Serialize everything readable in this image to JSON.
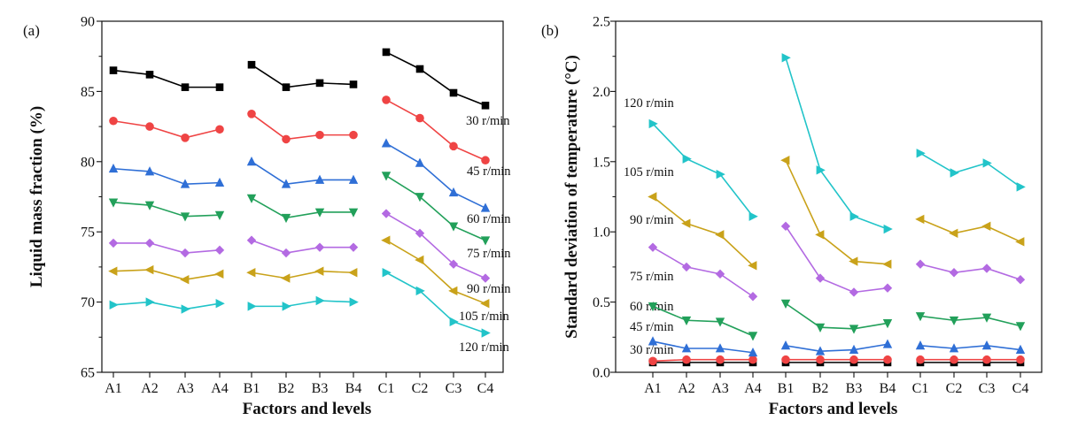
{
  "chart_data": [
    {
      "type": "line",
      "panel": "(a)",
      "xlabel": "Factors and levels",
      "ylabel": "Liquid mass fraction (%)",
      "ylim": [
        65,
        90
      ],
      "yticks": [
        "65",
        "70",
        "75",
        "80",
        "85",
        "90"
      ],
      "groups": [
        [
          "A1",
          "A2",
          "A3",
          "A4"
        ],
        [
          "B1",
          "B2",
          "B3",
          "B4"
        ],
        [
          "C1",
          "C2",
          "C3",
          "C4"
        ]
      ],
      "series": [
        {
          "name": "30 r/min",
          "label": "30 r/min",
          "color": "#000000",
          "marker": "square",
          "values": [
            [
              86.5,
              86.2,
              85.3,
              85.3
            ],
            [
              86.9,
              85.3,
              85.6,
              85.5
            ],
            [
              87.8,
              86.6,
              84.9,
              84.0
            ]
          ]
        },
        {
          "name": "45 r/min",
          "label": "45 r/min",
          "color": "#ef4444",
          "marker": "circle",
          "values": [
            [
              82.9,
              82.5,
              81.7,
              82.3
            ],
            [
              83.4,
              81.6,
              81.9,
              81.9
            ],
            [
              84.4,
              83.1,
              81.1,
              80.1
            ]
          ]
        },
        {
          "name": "60 r/min",
          "label": "60 r/min",
          "color": "#2f6fd6",
          "marker": "triangle-up",
          "values": [
            [
              79.5,
              79.3,
              78.4,
              78.5
            ],
            [
              80.0,
              78.4,
              78.7,
              78.7
            ],
            [
              81.3,
              79.9,
              77.8,
              76.7
            ]
          ]
        },
        {
          "name": "75 r/min",
          "label": "75 r/min",
          "color": "#22a05a",
          "marker": "triangle-down",
          "values": [
            [
              77.1,
              76.9,
              76.1,
              76.2
            ],
            [
              77.4,
              76.0,
              76.4,
              76.4
            ],
            [
              79.0,
              77.5,
              75.4,
              74.4
            ]
          ]
        },
        {
          "name": "90 r/min",
          "label": "90 r/min",
          "color": "#b36ae2",
          "marker": "diamond",
          "values": [
            [
              74.2,
              74.2,
              73.5,
              73.7
            ],
            [
              74.4,
              73.5,
              73.9,
              73.9
            ],
            [
              76.3,
              74.9,
              72.7,
              71.7
            ]
          ]
        },
        {
          "name": "105 r/min",
          "label": "105 r/min",
          "color": "#c9a21a",
          "marker": "triangle-left",
          "values": [
            [
              72.2,
              72.3,
              71.6,
              72.0
            ],
            [
              72.1,
              71.7,
              72.2,
              72.1
            ],
            [
              74.4,
              73.0,
              70.8,
              69.9
            ]
          ]
        },
        {
          "name": "120 r/min",
          "label": "120 r/min",
          "color": "#22c4c9",
          "marker": "triangle-right",
          "values": [
            [
              69.8,
              70.0,
              69.5,
              69.9
            ],
            [
              69.7,
              69.7,
              70.1,
              70.0
            ],
            [
              72.1,
              70.8,
              68.6,
              67.8
            ]
          ]
        }
      ]
    },
    {
      "type": "line",
      "panel": "(b)",
      "xlabel": "Factors and levels",
      "ylabel": "Standard deviation of temperature (°C)",
      "ylim": [
        0,
        2.5
      ],
      "yticks": [
        "0.0",
        "0.5",
        "1.0",
        "1.5",
        "2.0",
        "2.5"
      ],
      "groups": [
        [
          "A1",
          "A2",
          "A3",
          "A4"
        ],
        [
          "B1",
          "B2",
          "B3",
          "B4"
        ],
        [
          "C1",
          "C2",
          "C3",
          "C4"
        ]
      ],
      "series": [
        {
          "name": "30 r/min",
          "label": "30 r/min",
          "color": "#000000",
          "marker": "square",
          "values": [
            [
              0.07,
              0.07,
              0.07,
              0.07
            ],
            [
              0.07,
              0.07,
              0.07,
              0.07
            ],
            [
              0.07,
              0.07,
              0.07,
              0.07
            ]
          ]
        },
        {
          "name": "45 r/min",
          "label": "45 r/min",
          "color": "#ef4444",
          "marker": "circle",
          "values": [
            [
              0.08,
              0.09,
              0.09,
              0.09
            ],
            [
              0.09,
              0.09,
              0.09,
              0.09
            ],
            [
              0.09,
              0.09,
              0.09,
              0.09
            ]
          ]
        },
        {
          "name": "60 r/min",
          "label": "60 r/min",
          "color": "#2f6fd6",
          "marker": "triangle-up",
          "values": [
            [
              0.22,
              0.17,
              0.17,
              0.14
            ],
            [
              0.19,
              0.15,
              0.16,
              0.2
            ],
            [
              0.19,
              0.17,
              0.19,
              0.16
            ]
          ]
        },
        {
          "name": "75 r/min",
          "label": "75 r/min",
          "color": "#22a05a",
          "marker": "triangle-down",
          "values": [
            [
              0.47,
              0.37,
              0.36,
              0.26
            ],
            [
              0.49,
              0.32,
              0.31,
              0.35
            ],
            [
              0.4,
              0.37,
              0.39,
              0.33
            ]
          ]
        },
        {
          "name": "90 r/min",
          "label": "90 r/min",
          "color": "#b36ae2",
          "marker": "diamond",
          "values": [
            [
              0.89,
              0.75,
              0.7,
              0.54
            ],
            [
              1.04,
              0.67,
              0.57,
              0.6
            ],
            [
              0.77,
              0.71,
              0.74,
              0.66
            ]
          ]
        },
        {
          "name": "105 r/min",
          "label": "105 r/min",
          "color": "#c9a21a",
          "marker": "triangle-left",
          "values": [
            [
              1.25,
              1.06,
              0.98,
              0.76
            ],
            [
              1.51,
              0.98,
              0.79,
              0.77
            ],
            [
              1.09,
              0.99,
              1.04,
              0.93
            ]
          ]
        },
        {
          "name": "120 r/min",
          "label": "120 r/min",
          "color": "#22c4c9",
          "marker": "triangle-right",
          "values": [
            [
              1.77,
              1.52,
              1.41,
              1.11
            ],
            [
              2.24,
              1.44,
              1.11,
              1.02
            ],
            [
              1.56,
              1.42,
              1.49,
              1.32
            ]
          ]
        }
      ]
    }
  ]
}
